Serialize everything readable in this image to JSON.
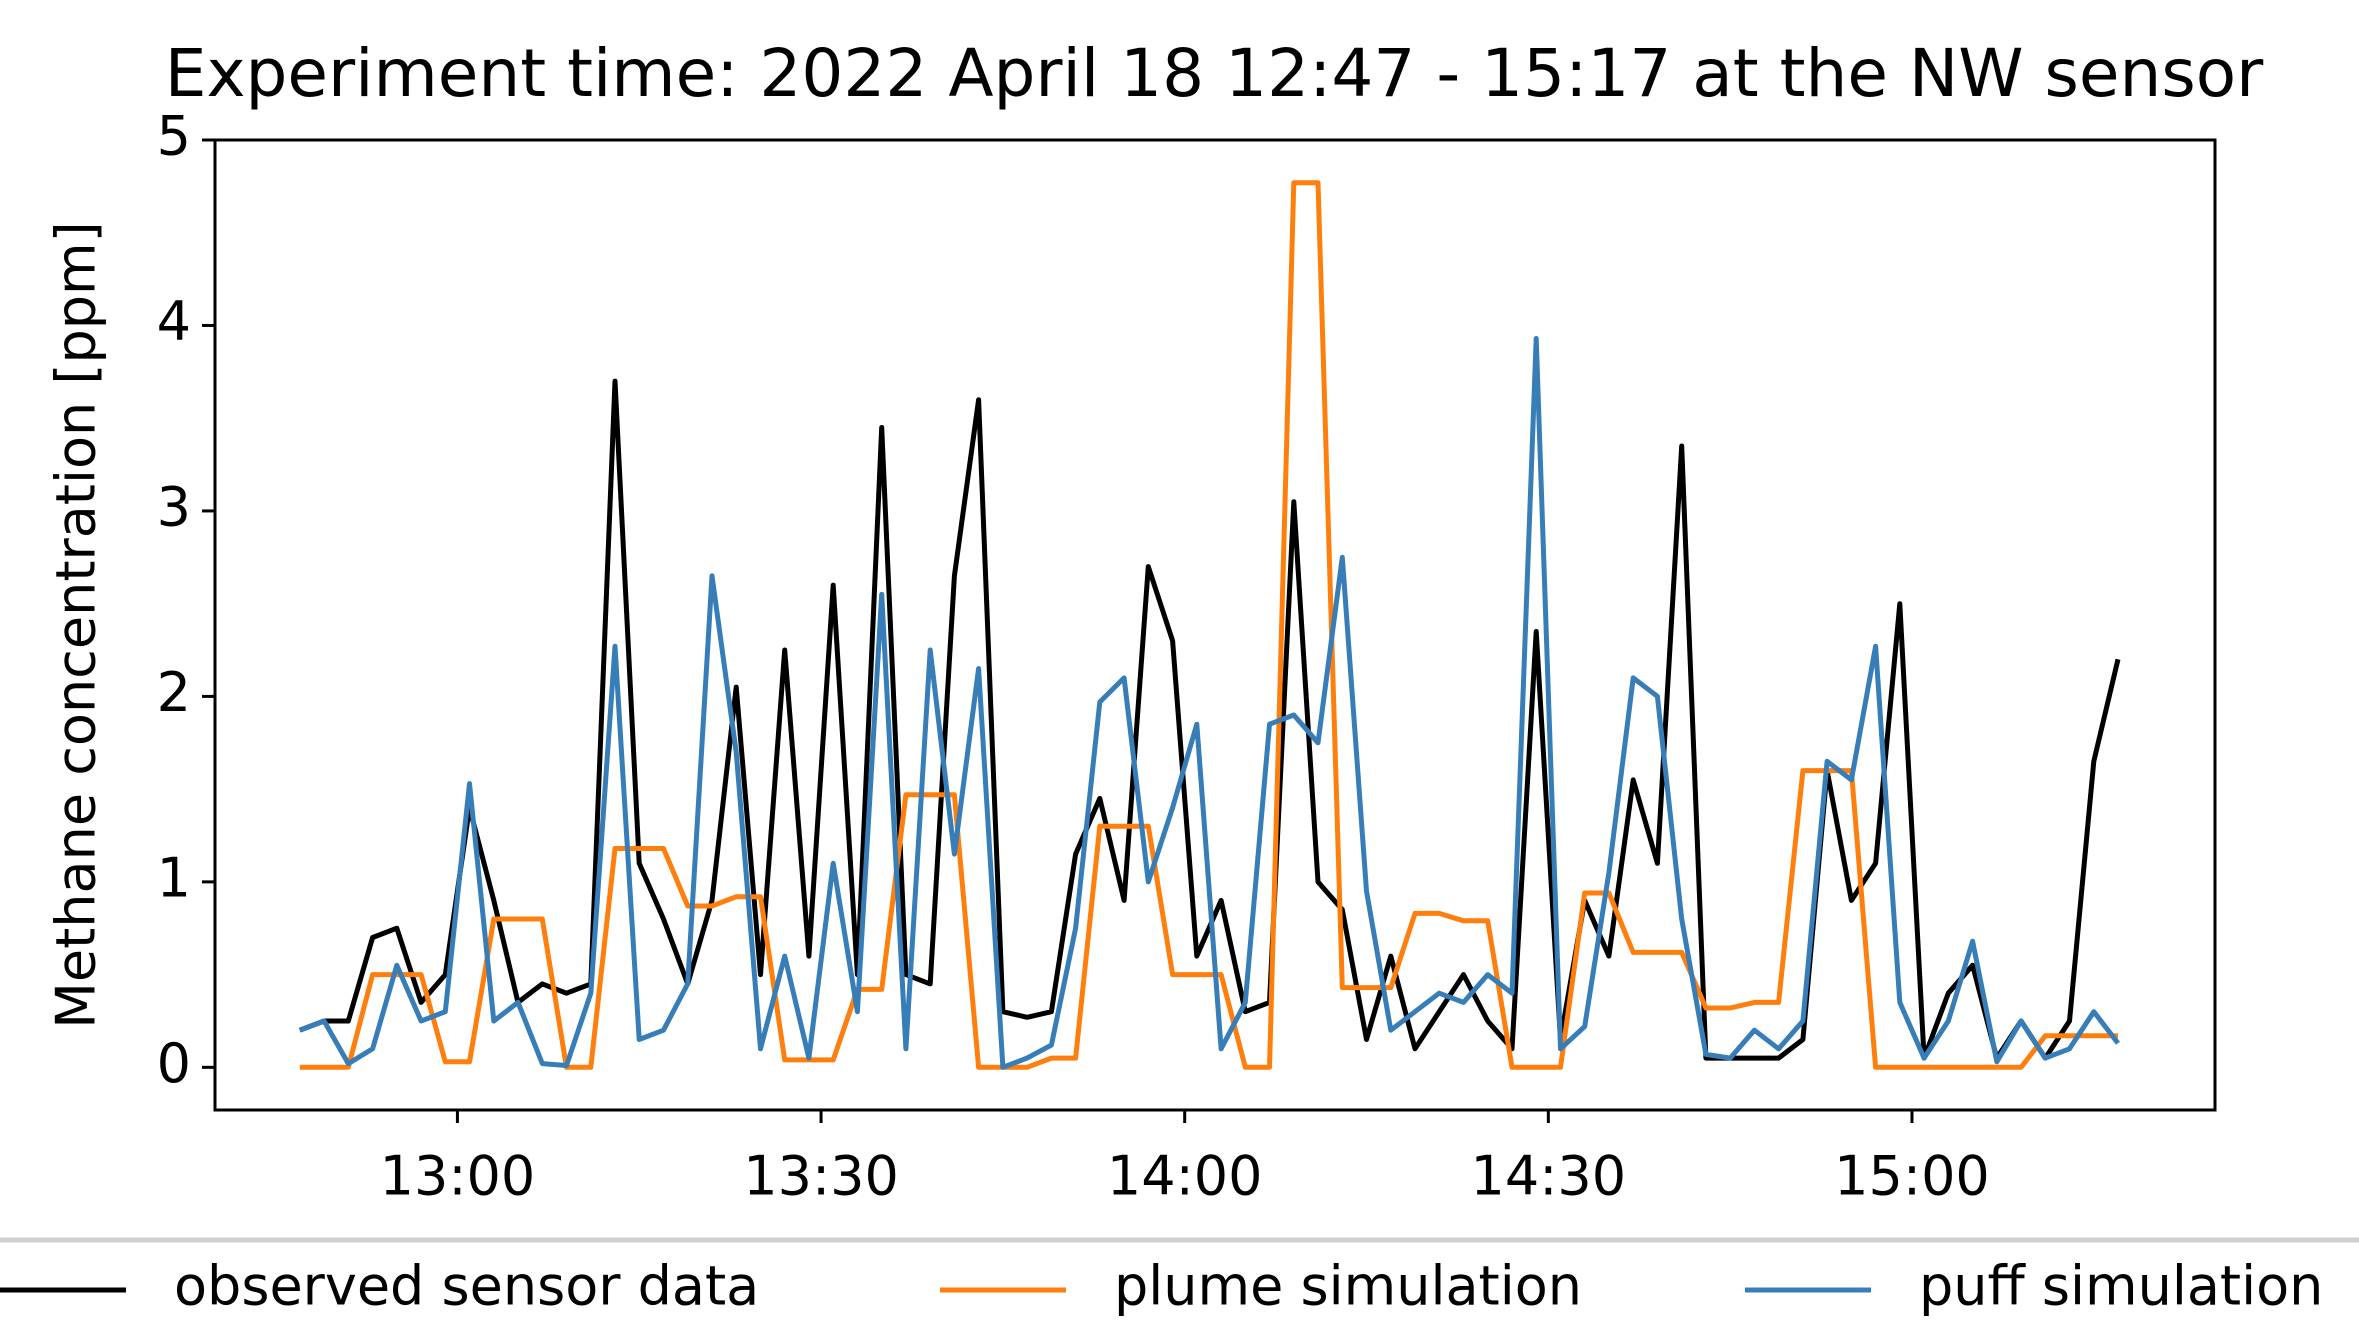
{
  "chart_data": {
    "type": "line",
    "title": "Experiment time: 2022 April 18 12:47 - 15:17 at the NW sensor",
    "y_label": "Methane concentration [ppm]",
    "x": [
      "12:47",
      "12:49",
      "12:51",
      "12:53",
      "12:55",
      "12:57",
      "12:59",
      "13:01",
      "13:03",
      "13:05",
      "13:07",
      "13:09",
      "13:11",
      "13:13",
      "13:15",
      "13:17",
      "13:19",
      "13:21",
      "13:23",
      "13:25",
      "13:27",
      "13:29",
      "13:31",
      "13:33",
      "13:35",
      "13:37",
      "13:39",
      "13:41",
      "13:43",
      "13:45",
      "13:47",
      "13:49",
      "13:51",
      "13:53",
      "13:55",
      "13:57",
      "13:59",
      "14:01",
      "14:03",
      "14:05",
      "14:07",
      "14:09",
      "14:11",
      "14:13",
      "14:15",
      "14:17",
      "14:19",
      "14:21",
      "14:23",
      "14:25",
      "14:27",
      "14:29",
      "14:31",
      "14:33",
      "14:35",
      "14:37",
      "14:39",
      "14:41",
      "14:43",
      "14:45",
      "14:47",
      "14:49",
      "14:51",
      "14:53",
      "14:55",
      "14:57",
      "14:59",
      "15:01",
      "15:03",
      "15:05",
      "15:07",
      "15:09",
      "15:11",
      "15:13",
      "15:15",
      "15:17"
    ],
    "series": [
      {
        "name": "observed sensor data",
        "color": "#000000",
        "values": [
          0.2,
          0.25,
          0.25,
          0.7,
          0.75,
          0.35,
          0.5,
          1.4,
          0.9,
          0.35,
          0.45,
          0.4,
          0.45,
          3.7,
          1.1,
          0.8,
          0.45,
          0.9,
          2.05,
          0.5,
          2.25,
          0.6,
          2.6,
          0.5,
          3.45,
          0.5,
          0.45,
          2.65,
          3.6,
          0.3,
          0.27,
          0.3,
          1.15,
          1.45,
          0.9,
          2.7,
          2.3,
          0.6,
          0.9,
          0.3,
          0.35,
          3.05,
          1.0,
          0.85,
          0.15,
          0.6,
          0.1,
          0.3,
          0.5,
          0.25,
          0.1,
          2.35,
          0.15,
          0.9,
          0.6,
          1.55,
          1.1,
          3.35,
          0.05,
          0.05,
          0.05,
          0.05,
          0.15,
          1.6,
          0.9,
          1.1,
          2.5,
          0.05,
          0.4,
          0.55,
          0.05,
          0.25,
          0.05,
          0.25,
          1.65,
          2.2
        ]
      },
      {
        "name": "plume simulation",
        "color": "#ff7f0e",
        "values": [
          0,
          0,
          0,
          0.5,
          0.5,
          0.5,
          0.03,
          0.03,
          0.8,
          0.8,
          0.8,
          0,
          0,
          1.18,
          1.18,
          1.18,
          0.87,
          0.87,
          0.92,
          0.92,
          0.04,
          0.04,
          0.04,
          0.42,
          0.42,
          1.47,
          1.47,
          1.47,
          0,
          0,
          0,
          0.05,
          0.05,
          1.3,
          1.3,
          1.3,
          0.5,
          0.5,
          0.5,
          0,
          0,
          4.77,
          4.77,
          0.43,
          0.43,
          0.43,
          0.83,
          0.83,
          0.79,
          0.79,
          0,
          0,
          0,
          0.94,
          0.94,
          0.62,
          0.62,
          0.62,
          0.32,
          0.32,
          0.35,
          0.35,
          1.6,
          1.6,
          1.6,
          0,
          0,
          0,
          0,
          0,
          0,
          0,
          0.17,
          0.17,
          0.17,
          0.17
        ]
      },
      {
        "name": "puff simulation",
        "color": "#377eb8",
        "values": [
          0.2,
          0.25,
          0.02,
          0.1,
          0.55,
          0.25,
          0.3,
          1.53,
          0.25,
          0.35,
          0.02,
          0.01,
          0.4,
          2.27,
          0.15,
          0.2,
          0.45,
          2.65,
          1.7,
          0.1,
          0.6,
          0.05,
          1.1,
          0.3,
          2.55,
          0.1,
          2.25,
          1.15,
          2.15,
          0.0,
          0.05,
          0.12,
          0.75,
          1.97,
          2.1,
          1.0,
          1.4,
          1.85,
          0.1,
          0.35,
          1.85,
          1.9,
          1.75,
          2.75,
          0.95,
          0.2,
          0.3,
          0.4,
          0.35,
          0.5,
          0.4,
          3.93,
          0.1,
          0.22,
          1.05,
          2.1,
          2.0,
          0.8,
          0.07,
          0.05,
          0.2,
          0.1,
          0.25,
          1.65,
          1.55,
          2.27,
          0.35,
          0.05,
          0.25,
          0.68,
          0.03,
          0.25,
          0.05,
          0.1,
          0.3,
          0.13
        ]
      }
    ],
    "xlim": [
      "12:40",
      "15:25"
    ],
    "xticks": [
      "13:00",
      "13:30",
      "14:00",
      "14:30",
      "15:00"
    ],
    "ylim": [
      -0.23,
      5
    ],
    "yticks": [
      0,
      1,
      2,
      3,
      4,
      5
    ],
    "grid": false,
    "legend": "bottom"
  }
}
